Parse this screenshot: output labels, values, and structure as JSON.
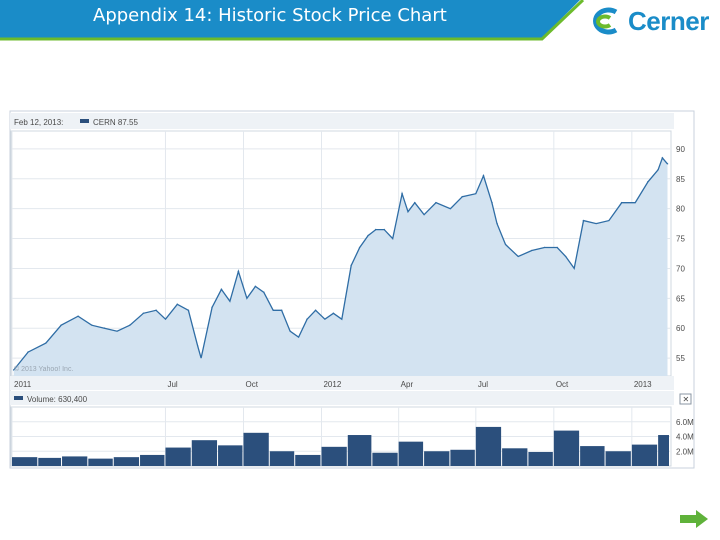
{
  "slide": {
    "title": "Appendix 14: Historic Stock Price Chart",
    "logo_text": "Cerner",
    "logo_icon": "cerner-logo-icon",
    "nav_icon": "next-arrow-icon"
  },
  "colors": {
    "header_blue": "#1a8cc8",
    "header_green": "#6cbb2c",
    "price_fill": "#d3e3f1",
    "price_line": "#2f6da5",
    "volume_bar": "#2b4f7c",
    "grid": "#dde3ea",
    "panel_bg": "#eaf0f6",
    "arrow_green": "#5fb23a"
  },
  "chart_data": {
    "type": "area",
    "header_date": "Feb 12, 2013:",
    "series_label": "CERN 87.55",
    "watermark": "© 2013 Yahoo! Inc.",
    "x_tick_labels": [
      "2011",
      "Jul",
      "Oct",
      "2012",
      "Apr",
      "Jul",
      "Oct",
      "2013"
    ],
    "y_ticks": [
      55,
      60,
      65,
      70,
      75,
      80,
      85,
      90
    ],
    "ylim": [
      52,
      93
    ],
    "grid": true,
    "price_series": {
      "name": "CERN",
      "x": [
        "2011-01-03",
        "2011-01-20",
        "2011-02-10",
        "2011-02-28",
        "2011-03-20",
        "2011-04-05",
        "2011-04-20",
        "2011-05-05",
        "2011-05-20",
        "2011-06-05",
        "2011-06-20",
        "2011-07-01",
        "2011-07-15",
        "2011-07-28",
        "2011-08-08",
        "2011-08-12",
        "2011-08-25",
        "2011-09-05",
        "2011-09-15",
        "2011-09-25",
        "2011-10-05",
        "2011-10-15",
        "2011-10-25",
        "2011-11-05",
        "2011-11-15",
        "2011-11-25",
        "2011-12-05",
        "2011-12-15",
        "2011-12-25",
        "2012-01-05",
        "2012-01-15",
        "2012-01-25",
        "2012-02-05",
        "2012-02-15",
        "2012-02-25",
        "2012-03-05",
        "2012-03-15",
        "2012-03-25",
        "2012-04-05",
        "2012-04-12",
        "2012-04-20",
        "2012-05-01",
        "2012-05-15",
        "2012-06-01",
        "2012-06-15",
        "2012-07-01",
        "2012-07-10",
        "2012-07-20",
        "2012-07-26",
        "2012-08-05",
        "2012-08-20",
        "2012-09-05",
        "2012-09-20",
        "2012-10-05",
        "2012-10-15",
        "2012-10-25",
        "2012-11-05",
        "2012-11-20",
        "2012-12-05",
        "2012-12-20",
        "2013-01-05",
        "2013-01-20",
        "2013-02-01",
        "2013-02-06",
        "2013-02-12"
      ],
      "y": [
        53.0,
        56.0,
        57.5,
        60.5,
        62.0,
        60.5,
        60.0,
        59.5,
        60.5,
        62.5,
        63.0,
        61.5,
        64.0,
        63.0,
        57.0,
        55.0,
        63.5,
        66.5,
        64.5,
        69.5,
        65.0,
        67.0,
        66.0,
        63.0,
        63.0,
        59.5,
        58.5,
        61.5,
        63.0,
        61.5,
        62.5,
        61.5,
        70.5,
        73.5,
        75.5,
        76.5,
        76.5,
        75.0,
        82.5,
        79.5,
        81.0,
        79.0,
        81.0,
        80.0,
        82.0,
        82.5,
        85.5,
        81.0,
        77.5,
        74.0,
        72.0,
        73.0,
        73.5,
        73.5,
        72.0,
        70.0,
        78.0,
        77.5,
        78.0,
        81.0,
        81.0,
        84.5,
        86.5,
        88.5,
        87.5
      ]
    },
    "volume_label": "Volume: 630,400",
    "volume_ticks": [
      "6.0M",
      "4.0M",
      "2.0M"
    ],
    "volume_ylim": [
      0,
      8000000
    ],
    "volume_series": {
      "name": "Volume",
      "x": [
        "2011-01",
        "2011-02",
        "2011-03",
        "2011-04",
        "2011-05",
        "2011-06",
        "2011-07",
        "2011-08",
        "2011-09",
        "2011-10",
        "2011-11",
        "2011-12",
        "2012-01",
        "2012-02",
        "2012-03",
        "2012-04",
        "2012-05",
        "2012-06",
        "2012-07",
        "2012-08",
        "2012-09",
        "2012-10",
        "2012-11",
        "2012-12",
        "2013-01",
        "2013-02"
      ],
      "y": [
        1200000,
        1100000,
        1300000,
        1000000,
        1200000,
        1500000,
        2500000,
        3500000,
        2800000,
        4500000,
        2000000,
        1500000,
        2600000,
        4200000,
        1800000,
        3300000,
        2000000,
        2200000,
        5300000,
        2400000,
        1900000,
        4800000,
        2700000,
        2000000,
        2900000,
        4200000
      ]
    }
  }
}
